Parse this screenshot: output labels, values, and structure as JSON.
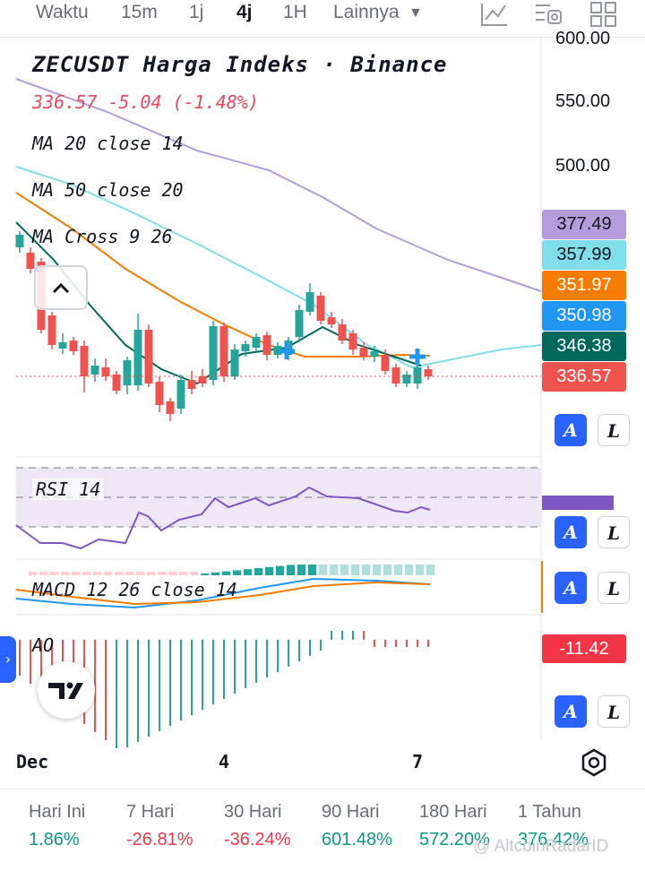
{
  "toolbar": {
    "items": [
      {
        "label": "Waktu",
        "active": false
      },
      {
        "label": "15m",
        "active": false
      },
      {
        "label": "1j",
        "active": false
      },
      {
        "label": "4j",
        "active": true
      },
      {
        "label": "1H",
        "active": false
      },
      {
        "label": "Lainnya",
        "active": false
      }
    ],
    "icons": [
      "indicators-icon",
      "templates-icon",
      "layouts-icon"
    ]
  },
  "legend": {
    "title": "ZECUSDT Harga Indeks · Binance",
    "last": "336.57",
    "change": "-5.04",
    "change_pct": "(-1.48%)",
    "ma1": "MA 20 close 14",
    "ma2": "MA 50 close 20",
    "ma3": "MA Cross 9 26"
  },
  "price_axis": {
    "ticks": [
      "600.00",
      "550.00",
      "500.00"
    ],
    "badges": [
      {
        "label": "377.49",
        "color": "#b39ddb",
        "text_color": "#131722"
      },
      {
        "label": "357.99",
        "color": "#80deea",
        "text_color": "#131722"
      },
      {
        "label": "351.97",
        "color": "#f57c00",
        "text_color": "#ffffff"
      },
      {
        "label": "350.98",
        "color": "#2196f3",
        "text_color": "#ffffff"
      },
      {
        "label": "346.38",
        "color": "#00695c",
        "text_color": "#ffffff"
      },
      {
        "label": "336.57",
        "color": "#ef5350",
        "text_color": "#ffffff"
      }
    ]
  },
  "panes": {
    "rsi_label": "RSI 14",
    "macd_label": "MACD 12 26 close 14",
    "ao_label": "AO",
    "ao_value": "-11.42"
  },
  "scale_buttons": {
    "auto": "A",
    "log": "L"
  },
  "dates": [
    "Dec",
    "4",
    "7"
  ],
  "performance": [
    {
      "label": "Hari Ini",
      "value": "1.86%",
      "color": "#089981"
    },
    {
      "label": "7 Hari",
      "value": "-26.81%",
      "color": "#f23645"
    },
    {
      "label": "30 Hari",
      "value": "-36.24%",
      "color": "#f23645"
    },
    {
      "label": "90 Hari",
      "value": "601.48%",
      "color": "#089981"
    },
    {
      "label": "180 Hari",
      "value": "572.20%",
      "color": "#089981"
    },
    {
      "label": "1 Tahun",
      "value": "376.42%",
      "color": "#089981"
    }
  ],
  "watermark": "@ AltcoinRadarID",
  "colors": {
    "up": "#26a69a",
    "down": "#ef5350",
    "accent": "#2962ff"
  }
}
